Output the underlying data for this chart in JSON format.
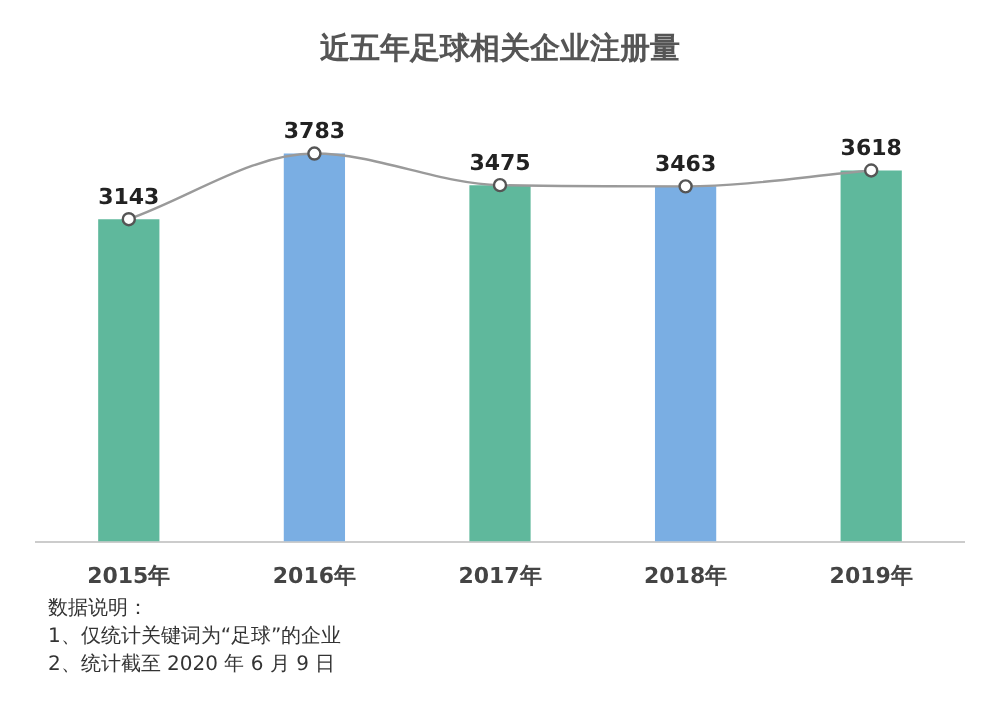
{
  "chart_data": {
    "type": "bar",
    "title": "近五年足球相关企业注册量",
    "categories": [
      "2015年",
      "2016年",
      "2017年",
      "2018年",
      "2019年"
    ],
    "series": [
      {
        "colors": [
          "#5fb89c",
          "#7aaee3",
          "#5fb89c",
          "#7aaee3",
          "#5fb89c"
        ],
        "values": [
          3143,
          3783,
          3475,
          3463,
          3618
        ],
        "value_labels": [
          "3143",
          "3783",
          "3475",
          "3463",
          "3618"
        ]
      },
      {
        "type": "line",
        "color": "#9a9a9a",
        "marker": "circle",
        "values": [
          3143,
          3783,
          3475,
          3463,
          3618
        ]
      }
    ],
    "grid": false,
    "legend": false,
    "annotations": [
      "数据说明：",
      "1、仅统计关键词为“足球”的企业",
      "2、统计截至 2020 年 6 月 9 日"
    ]
  }
}
